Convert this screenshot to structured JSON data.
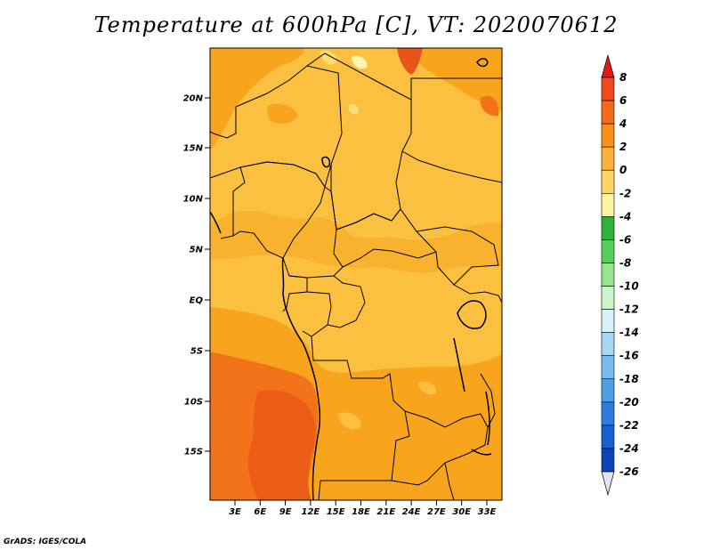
{
  "title": "Temperature at 600hPa [C], VT: 2020070612",
  "credit": "GrADS: IGES/COLA",
  "map": {
    "lat_labels": [
      "20N",
      "15N",
      "10N",
      "5N",
      "EQ",
      "5S",
      "10S",
      "15S"
    ],
    "lon_labels": [
      "3E",
      "6E",
      "9E",
      "12E",
      "15E",
      "18E",
      "21E",
      "24E",
      "27E",
      "30E",
      "33E"
    ],
    "fill_colors": {
      "warm_light": "#fbc040",
      "warm_mid": "#f8a51d",
      "warm_dark": "#f3731a",
      "hot": "#e8541b",
      "cool": "#fdde6f",
      "pale": "#fff4b0"
    }
  },
  "colorbar": {
    "labels": [
      "8",
      "6",
      "4",
      "2",
      "0",
      "-2",
      "-4",
      "-6",
      "-8",
      "-10",
      "-12",
      "-14",
      "-16",
      "-18",
      "-20",
      "-22",
      "-24",
      "-26"
    ],
    "colors": [
      "#e01b12",
      "#ee4a1a",
      "#f36a18",
      "#f7911b",
      "#fbb03a",
      "#fdd567",
      "#fff4a3",
      "#2eb23a",
      "#57cd5a",
      "#96e48e",
      "#ccf5cc",
      "#d8f0fa",
      "#a8d6f4",
      "#7abcee",
      "#4f9ee6",
      "#2b7dde",
      "#1760d2",
      "#0e44b5",
      "#0a2c92",
      "#0a1262"
    ]
  }
}
